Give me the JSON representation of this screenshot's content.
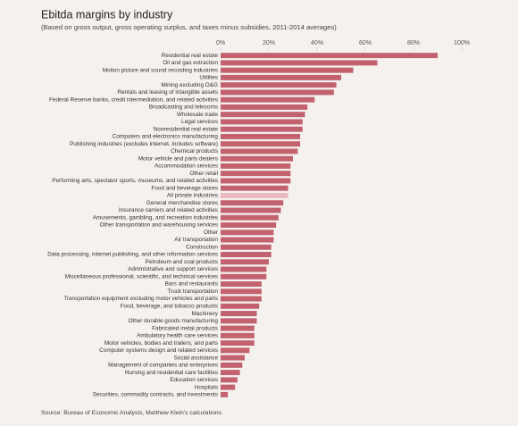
{
  "chart_data": {
    "type": "hbar",
    "title": "Ebitda margins by industry",
    "subtitle": "(Based on gross output, gross operating surplus, and taxes minus subsidies, 2011-2014 averages)",
    "source": "Source: Bureau of Economic Analysis, Matthew Klein's calculations",
    "categories": [
      "Residential real estate",
      "Oil and gas extraction",
      "Motion picture and sound recording industries",
      "Utilities",
      "Mining excluding O&G",
      "Rentals and leasing of intangible assets",
      "Federal Reserve banks, credit intermediation, and related activities",
      "Broadcasting and telecoms",
      "Wholesale trade",
      "Legal services",
      "Nonresidential real estate",
      "Computers and electronics manufacturing",
      "Publishing industries (excludes internet, includes software)",
      "Chemical products",
      "Motor vehicle and parts dealers",
      "Accommodation services",
      "Other retail",
      "Performing arts, spectator sports, museums, and related activities",
      "Food and beverage stores",
      "All private industries",
      "General merchandise stores",
      "Insurance carriers and related activities",
      "Amusements, gambling, and recreation industries",
      "Other transportation and warehousing services",
      "Other",
      "Air transportation",
      "Construction",
      "Data processing, internet publishing, and other information services",
      "Petroleum and coal products",
      "Administrative and support services",
      "Miscellaneous professional, scientific, and technical services",
      "Bars and restaurants",
      "Truck transportation",
      "Transportation equipment excluding motor vehicles and parts",
      "Food, beverage, and tobacco products",
      "Machinery",
      "Other durable goods manufacturing",
      "Fabricated metal products",
      "Ambulatory health care services",
      "Motor vehicles, bodies and trailers, and parts",
      "Computer systems design and related services",
      "Social assistance",
      "Management of companies and enterprises",
      "Nursing and residential care facilities",
      "Education services",
      "Hospitals",
      "Securities, commodity contracts, and investments"
    ],
    "values": [
      90,
      65,
      55,
      50,
      48,
      47,
      39,
      36,
      35,
      34,
      34,
      33,
      33,
      32,
      30,
      29,
      29,
      29,
      28,
      28,
      26,
      25,
      24,
      23,
      22,
      22,
      21,
      21,
      20,
      19,
      19,
      17,
      17,
      17,
      16,
      15,
      15,
      14,
      14,
      14,
      12,
      10,
      9,
      8,
      7,
      6,
      3
    ],
    "colors": [
      "#c2626f",
      "#c2626f",
      "#c2626f",
      "#c2626f",
      "#c2626f",
      "#c2626f",
      "#c2626f",
      "#c2626f",
      "#c2626f",
      "#c2626f",
      "#c2626f",
      "#c2626f",
      "#c2626f",
      "#c2626f",
      "#c2626f",
      "#c2626f",
      "#c2626f",
      "#c2626f",
      "#c2626f",
      "#e9b9bd",
      "#c2626f",
      "#c2626f",
      "#c2626f",
      "#c2626f",
      "#c2626f",
      "#c2626f",
      "#c2626f",
      "#c2626f",
      "#c2626f",
      "#c2626f",
      "#c2626f",
      "#c2626f",
      "#c2626f",
      "#c2626f",
      "#c2626f",
      "#c2626f",
      "#c2626f",
      "#c2626f",
      "#c2626f",
      "#c2626f",
      "#c2626f",
      "#c2626f",
      "#c2626f",
      "#c2626f",
      "#c2626f",
      "#c2626f",
      "#c2626f"
    ],
    "xlim": [
      0,
      100
    ],
    "xticks": [
      {
        "value": 0,
        "label": "0%"
      },
      {
        "value": 20,
        "label": "20%"
      },
      {
        "value": 40,
        "label": "40%"
      },
      {
        "value": 60,
        "label": "60%"
      },
      {
        "value": 80,
        "label": "80%"
      },
      {
        "value": 100,
        "label": "100%"
      }
    ]
  }
}
